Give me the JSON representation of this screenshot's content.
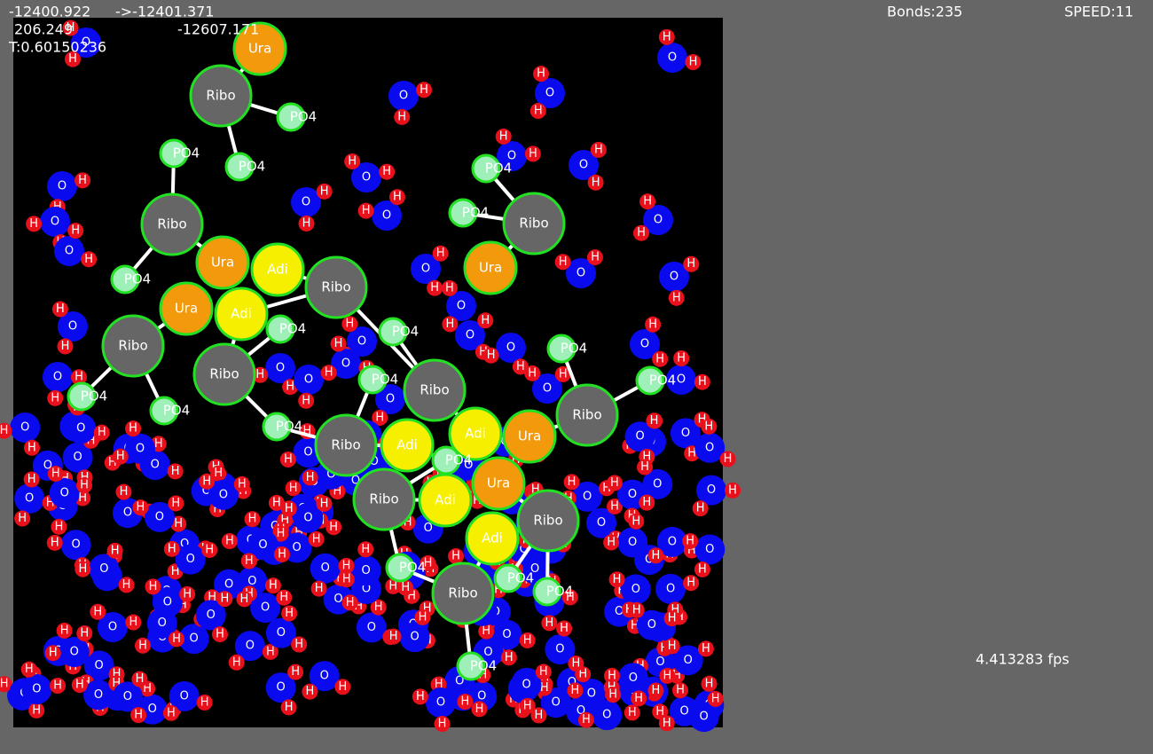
{
  "hud": {
    "energy": "-12400.922",
    "energy_next": "->-12401.371",
    "kinetic": "206.249",
    "potential": "-12607.171",
    "temperature": "T:0.60150236",
    "bonds": "Bonds:235",
    "speed": "SPEED:11",
    "fps": "4.413283 fps"
  },
  "labels": {
    "ribose": "Ribo",
    "uracil": "Ura",
    "adenine": "Adi",
    "phosphate": "PO4",
    "oxygen": "O",
    "hydrogen": "H"
  }
}
